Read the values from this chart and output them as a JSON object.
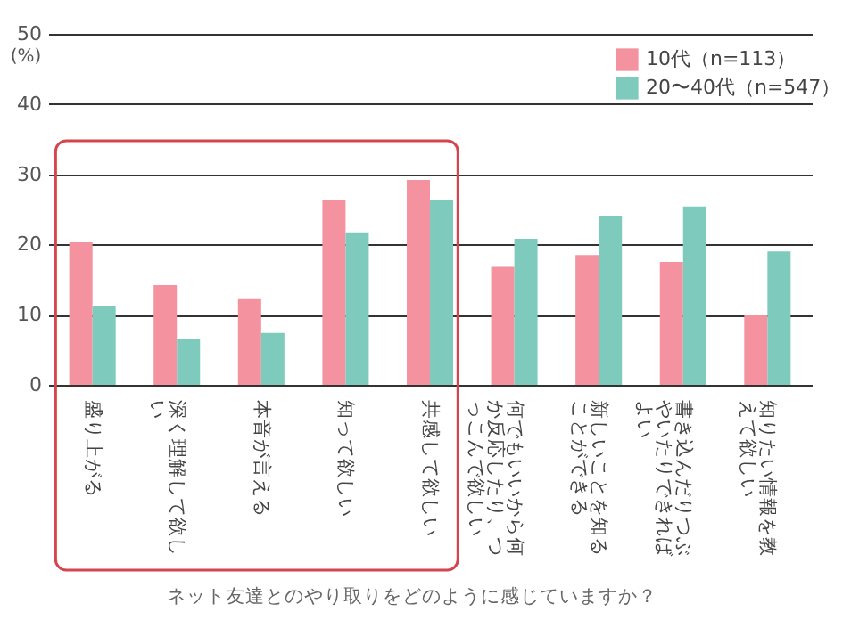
{
  "chart_data": {
    "type": "bar",
    "ylabel": "(%)",
    "categories": [
      "盛り上がる",
      "深く理解して欲しい",
      "本音が言える",
      "知って欲しい",
      "共感して欲しい",
      "何でもいいから何か反応したり、つっこんで欲しい",
      "新しいことを知ることができる",
      "書き込んだりつぶやいたりできればよい",
      "知りたい情報を教えて欲しい"
    ],
    "series": [
      {
        "name": "10代（n=113）",
        "color": "#f4929f",
        "values": [
          20.3,
          14.2,
          12.2,
          26.4,
          29.2,
          16.8,
          18.5,
          17.5,
          9.9
        ]
      },
      {
        "name": "20〜40代（n=547）",
        "color": "#7ecbbd",
        "values": [
          11.2,
          6.6,
          7.4,
          21.6,
          26.4,
          20.8,
          24.1,
          25.4,
          19.0
        ]
      }
    ],
    "ylim": [
      0,
      50
    ],
    "yticks": [
      0,
      10,
      20,
      30,
      40,
      50
    ],
    "grid": true,
    "legend": "top right",
    "annotations": [
      "ネット友達とのやり取りをどのように感じていますか？"
    ]
  }
}
